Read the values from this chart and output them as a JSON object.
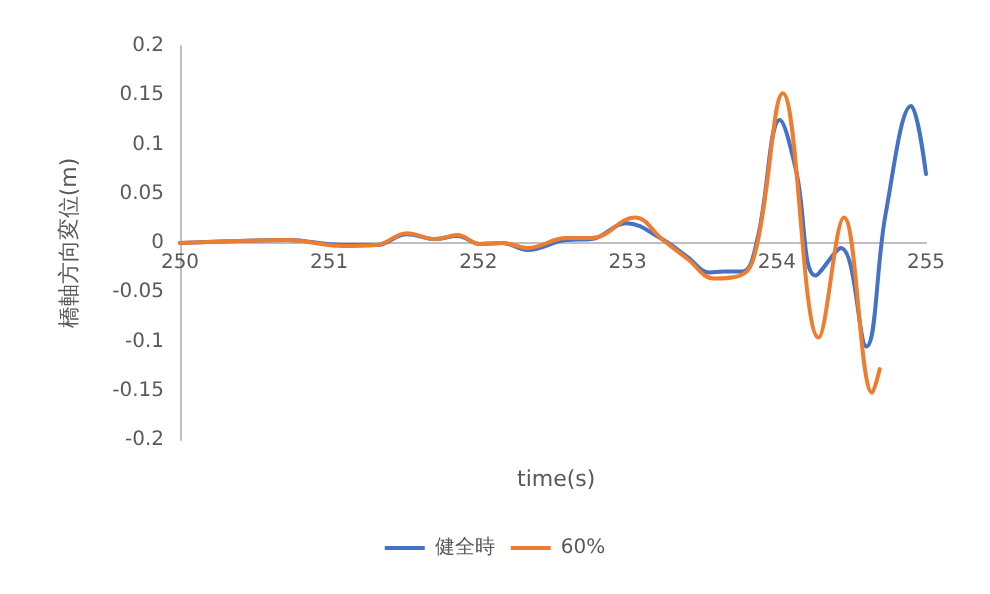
{
  "chart_data": {
    "type": "line",
    "xlabel": "time(s)",
    "ylabel": "橋軸方向変位(m)",
    "xlim": [
      250,
      255
    ],
    "xticks": [
      250,
      251,
      252,
      253,
      254,
      255
    ],
    "ylim": [
      -0.2,
      0.2
    ],
    "yticks": [
      -0.2,
      -0.15,
      -0.1,
      -0.05,
      0,
      0.05,
      0.1,
      0.15,
      0.2
    ],
    "grid": false,
    "legend": "bottom",
    "marker": "none",
    "line_style": "solid",
    "series": [
      {
        "name": "健全時",
        "color": "#4472c4",
        "x": [
          250,
          250.72,
          251.09,
          251.32,
          251.52,
          251.71,
          251.86,
          252.01,
          252.16,
          252.33,
          252.59,
          252.76,
          252.99,
          253.23,
          253.4,
          253.55,
          253.64,
          253.77,
          253.87,
          254.02,
          254.13,
          254.26,
          254.43,
          254.6,
          254.73,
          254.9,
          255
        ],
        "values": [
          0,
          0.003,
          -0.002,
          -0.002,
          0.009,
          0.004,
          0.007,
          -0.001,
          0,
          -0.007,
          0.003,
          0.004,
          0.02,
          0.004,
          -0.014,
          -0.03,
          -0.029,
          -0.029,
          0.004,
          0.125,
          0.073,
          -0.033,
          -0.005,
          -0.105,
          0.03,
          0.139,
          0.07
        ]
      },
      {
        "name": "60%",
        "color": "#ed7d31",
        "x": [
          250,
          250.72,
          251.09,
          251.32,
          251.52,
          251.71,
          251.86,
          252.01,
          252.16,
          252.33,
          252.59,
          252.76,
          253.05,
          253.23,
          253.4,
          253.58,
          253.77,
          253.87,
          254.04,
          254.28,
          254.45,
          254.64,
          254.69
        ],
        "values": [
          0,
          0.003,
          -0.003,
          -0.002,
          0.01,
          0.004,
          0.008,
          -0.001,
          0,
          -0.005,
          0.005,
          0.005,
          0.026,
          0.004,
          -0.016,
          -0.036,
          -0.032,
          0,
          0.152,
          -0.096,
          0.026,
          -0.152,
          -0.128
        ]
      }
    ]
  }
}
